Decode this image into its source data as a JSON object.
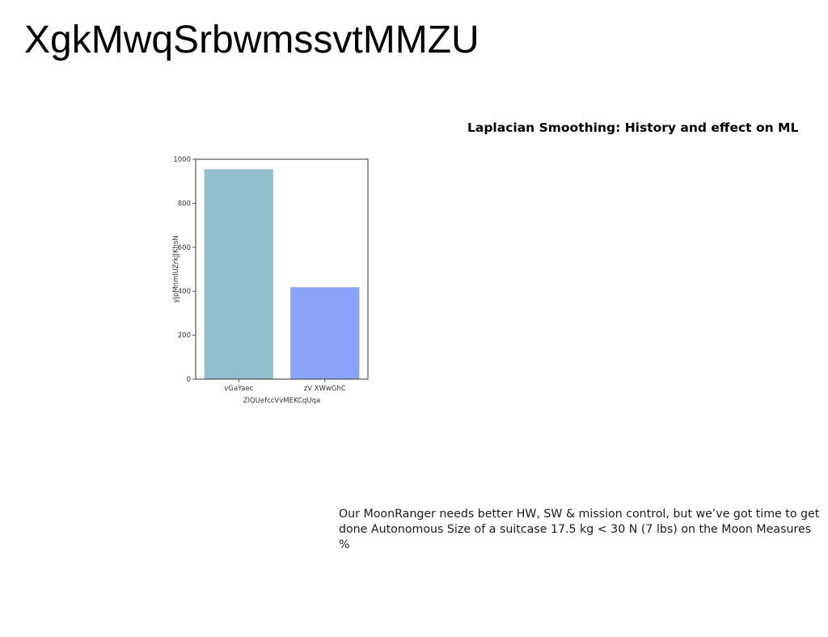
{
  "page": {
    "heading": "XgkMwqSrbwmssvtMMZU",
    "chart_heading": "Laplacian Smoothing: History and effect on ML",
    "body_text": "Our MoonRanger needs better HW, SW & mission control, but we’ve got time to get done Autonomous Size of a suitcase 17.5 kg < 30 N (7 lbs) on the Moon Measures %"
  },
  "colors": {
    "bar_1": "#93bfcc",
    "bar_2": "#8aa3f8",
    "axis": "#333333"
  },
  "chart_data": {
    "type": "bar",
    "categories": [
      "vGaYaec",
      "zV XWwGhC"
    ],
    "values": [
      955,
      418
    ],
    "xlabel": "ZlQUefccVvMEKCqUqa",
    "ylabel": "yJpMnmlUZrkJJKhsN",
    "ylim": [
      0,
      1000
    ],
    "yticks": [
      0,
      200,
      400,
      600,
      800,
      1000
    ],
    "grid": false,
    "legend": "none"
  }
}
